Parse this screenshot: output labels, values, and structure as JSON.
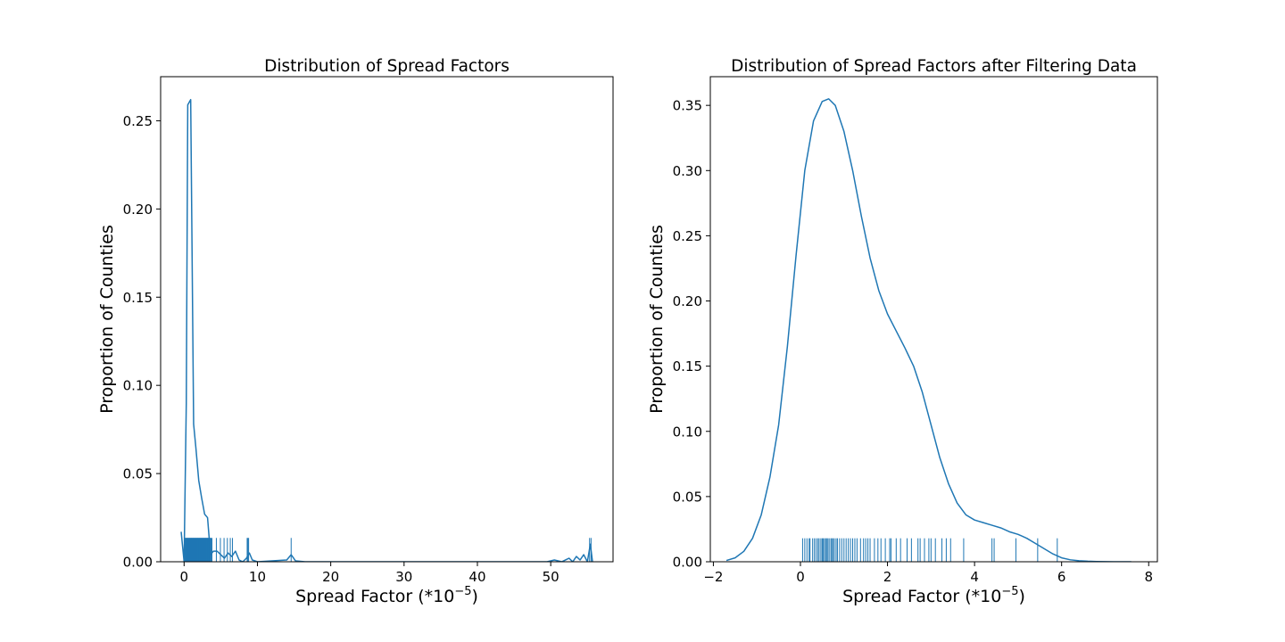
{
  "chart_data": [
    {
      "type": "line",
      "title": "Distribution of Spread Factors",
      "xlabel_base": "Spread Factor (*10",
      "xlabel_exp": "−5",
      "xlabel_close": ")",
      "ylabel": "Proportion of Counties",
      "xlim": [
        -3.2,
        58.5
      ],
      "ylim": [
        0,
        0.275
      ],
      "xticks": [
        0,
        10,
        20,
        30,
        40,
        50
      ],
      "xtick_labels": [
        "0",
        "10",
        "20",
        "30",
        "40",
        "50"
      ],
      "yticks": [
        0,
        0.05,
        0.1,
        0.15,
        0.2,
        0.25
      ],
      "ytick_labels": [
        "0.00",
        "0.05",
        "0.10",
        "0.15",
        "0.20",
        "0.25"
      ],
      "color": "#1f77b4",
      "grid": false,
      "series": [
        {
          "x": [
            -0.4,
            0.0,
            0.3,
            0.5,
            0.9,
            1.3,
            1.6,
            2.0,
            2.4,
            2.8,
            3.2,
            3.6,
            4.0,
            4.5,
            5.0,
            5.5,
            6.0,
            6.5,
            7.0,
            7.5,
            8.0,
            8.5,
            8.9,
            9.3,
            10.0,
            12.0,
            14.0,
            14.6,
            15.2,
            16.5,
            20,
            25,
            30,
            35,
            40,
            45,
            49.5,
            50.5,
            51.5,
            52.5,
            53.0,
            53.5,
            54.0,
            54.5,
            55.0,
            55.4,
            55.7
          ],
          "y": [
            0.017,
            0.0,
            0.09,
            0.259,
            0.262,
            0.078,
            0.065,
            0.046,
            0.036,
            0.027,
            0.025,
            0.004,
            0.006,
            0.006,
            0.004,
            0.002,
            0.005,
            0.003,
            0.006,
            0.001,
            0.0,
            0.002,
            0.005,
            0.001,
            0.0,
            0.0005,
            0.001,
            0.004,
            0.0005,
            0.0,
            0.0,
            0.0,
            0.0,
            0.0,
            0.0,
            0.0,
            0.0,
            0.001,
            0.0,
            0.002,
            0.0,
            0.003,
            0.001,
            0.004,
            0.0,
            0.01,
            0.0
          ]
        }
      ],
      "rug_height": 0.0135,
      "rug": [
        0.05,
        0.15,
        0.2,
        0.25,
        0.3,
        0.35,
        0.4,
        0.45,
        0.5,
        0.55,
        0.6,
        0.65,
        0.7,
        0.75,
        0.8,
        0.85,
        0.9,
        0.95,
        1.0,
        1.05,
        1.1,
        1.15,
        1.2,
        1.25,
        1.3,
        1.35,
        1.4,
        1.45,
        1.5,
        1.55,
        1.6,
        1.65,
        1.7,
        1.75,
        1.8,
        1.85,
        1.9,
        1.95,
        2.0,
        2.05,
        2.1,
        2.15,
        2.2,
        2.25,
        2.3,
        2.35,
        2.4,
        2.45,
        2.5,
        2.55,
        2.6,
        2.65,
        2.7,
        2.75,
        2.8,
        2.85,
        2.9,
        2.95,
        3.0,
        3.05,
        3.1,
        3.15,
        3.2,
        3.25,
        3.3,
        3.35,
        3.4,
        3.45,
        3.5,
        3.55,
        3.6,
        3.7,
        3.8,
        4.4,
        4.95,
        5.45,
        5.9,
        6.3,
        6.6,
        8.6,
        8.7,
        8.8,
        14.6,
        55.3,
        55.5
      ]
    },
    {
      "type": "line",
      "title": "Distribution of Spread Factors after Filtering Data",
      "xlabel_base": "Spread Factor (*10",
      "xlabel_exp": "−5",
      "xlabel_close": ")",
      "ylabel": "Proportion of Counties",
      "xlim": [
        -2.07,
        8.2
      ],
      "ylim": [
        0,
        0.372
      ],
      "xticks": [
        -2,
        0,
        2,
        4,
        6,
        8
      ],
      "xtick_labels": [
        "−2",
        "0",
        "2",
        "4",
        "6",
        "8"
      ],
      "yticks": [
        0,
        0.05,
        0.1,
        0.15,
        0.2,
        0.25,
        0.3,
        0.35
      ],
      "ytick_labels": [
        "0.00",
        "0.05",
        "0.10",
        "0.15",
        "0.20",
        "0.25",
        "0.30",
        "0.35"
      ],
      "color": "#1f77b4",
      "grid": false,
      "series": [
        {
          "x": [
            -1.7,
            -1.5,
            -1.3,
            -1.1,
            -0.9,
            -0.7,
            -0.5,
            -0.3,
            -0.1,
            0.1,
            0.3,
            0.5,
            0.65,
            0.8,
            1.0,
            1.2,
            1.4,
            1.6,
            1.8,
            2.0,
            2.2,
            2.4,
            2.6,
            2.8,
            3.0,
            3.2,
            3.4,
            3.6,
            3.8,
            4.0,
            4.2,
            4.4,
            4.6,
            4.8,
            5.0,
            5.2,
            5.4,
            5.6,
            5.8,
            6.0,
            6.2,
            6.4,
            6.6,
            6.8,
            7.0,
            7.2,
            7.4,
            7.6
          ],
          "y": [
            0.001,
            0.003,
            0.008,
            0.018,
            0.036,
            0.065,
            0.105,
            0.165,
            0.235,
            0.3,
            0.338,
            0.353,
            0.355,
            0.35,
            0.33,
            0.3,
            0.265,
            0.233,
            0.208,
            0.19,
            0.177,
            0.164,
            0.15,
            0.13,
            0.105,
            0.08,
            0.06,
            0.045,
            0.036,
            0.032,
            0.03,
            0.028,
            0.026,
            0.023,
            0.021,
            0.018,
            0.014,
            0.01,
            0.006,
            0.003,
            0.0015,
            0.0008,
            0.0004,
            0.0002,
            0.0001,
            0.0,
            0.0,
            0.0
          ]
        }
      ],
      "rug_height": 0.018,
      "rug": [
        0.05,
        0.1,
        0.15,
        0.2,
        0.22,
        0.28,
        0.32,
        0.36,
        0.4,
        0.43,
        0.47,
        0.5,
        0.52,
        0.55,
        0.58,
        0.6,
        0.63,
        0.66,
        0.7,
        0.72,
        0.75,
        0.78,
        0.82,
        0.85,
        0.9,
        0.95,
        1.0,
        1.05,
        1.1,
        1.15,
        1.2,
        1.25,
        1.3,
        1.38,
        1.45,
        1.5,
        1.55,
        1.6,
        1.7,
        1.78,
        1.85,
        1.95,
        2.05,
        2.08,
        2.2,
        2.3,
        2.45,
        2.55,
        2.7,
        2.75,
        2.85,
        2.95,
        3.0,
        3.1,
        3.25,
        3.35,
        3.45,
        3.75,
        4.4,
        4.45,
        4.95,
        5.45,
        5.9
      ]
    }
  ]
}
